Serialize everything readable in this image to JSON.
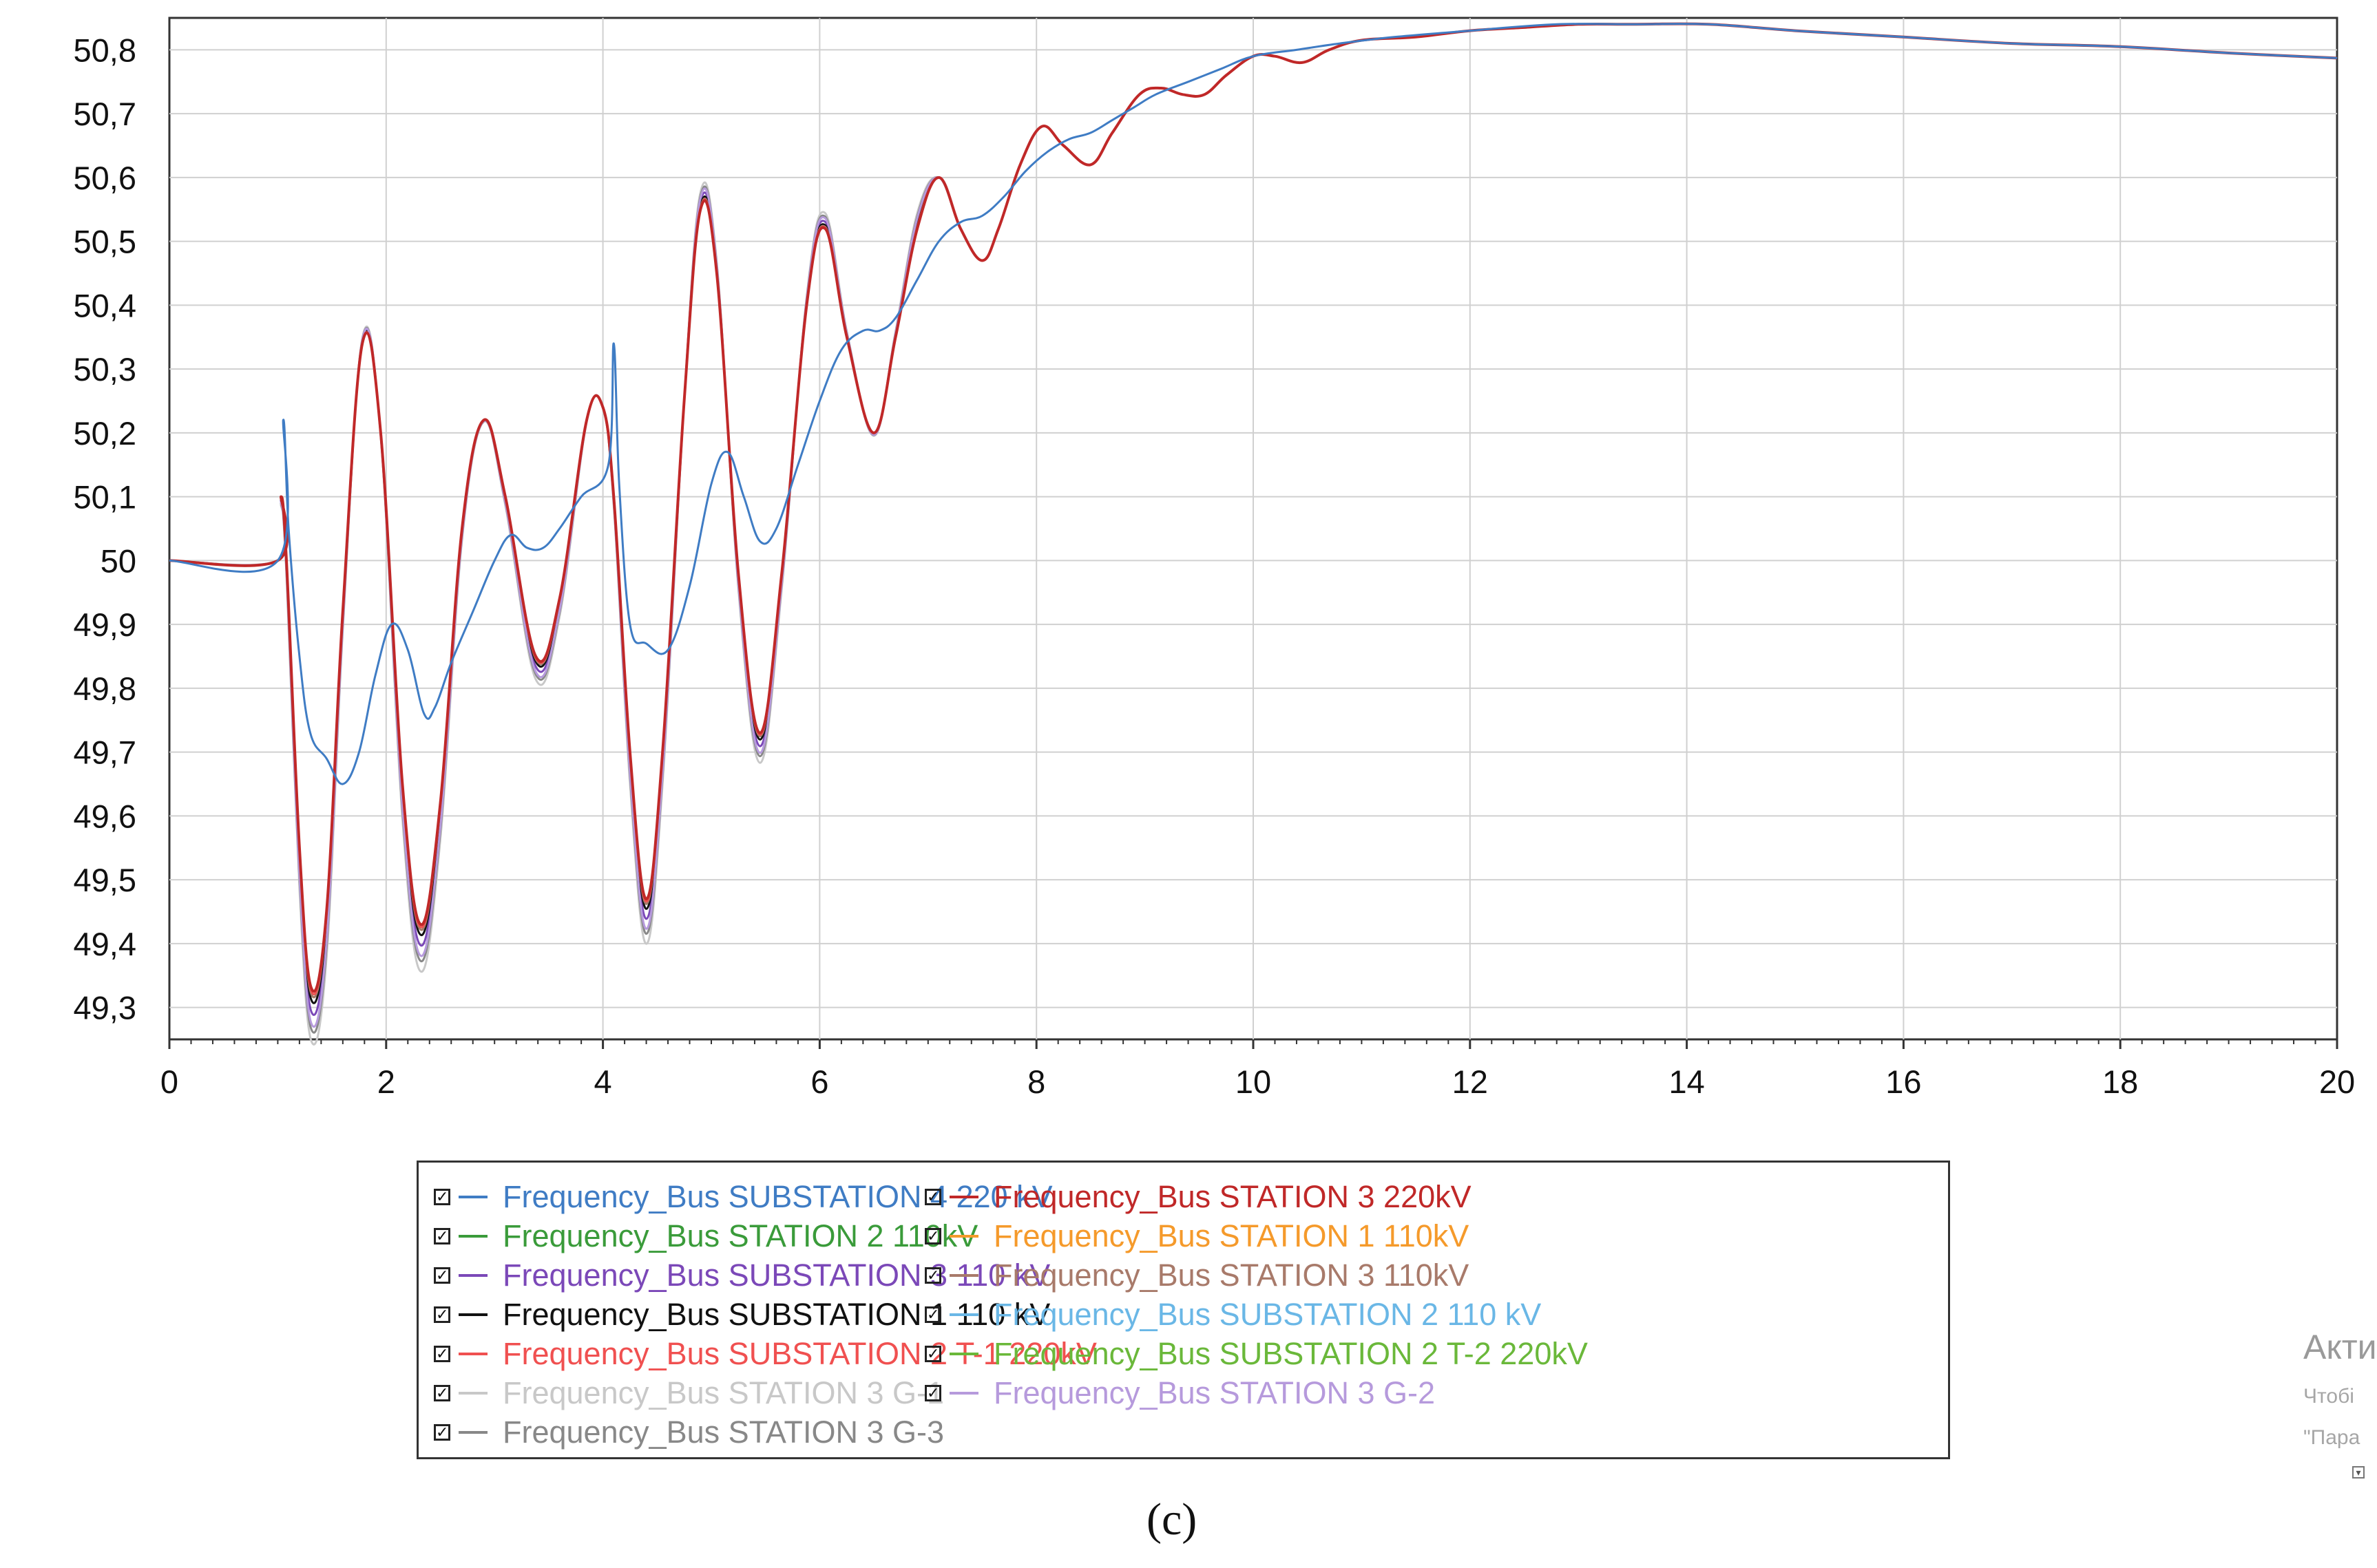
{
  "chart_data": {
    "type": "line",
    "title": "",
    "xlabel": "",
    "ylabel": "",
    "xlim": [
      0,
      20
    ],
    "ylim": [
      49.25,
      50.85
    ],
    "grid": true,
    "legend_position": "bottom",
    "x_ticks": [
      "0",
      "2",
      "4",
      "6",
      "8",
      "10",
      "12",
      "14",
      "16",
      "18",
      "20"
    ],
    "y_ticks": [
      "49,3",
      "49,4",
      "49,5",
      "49,6",
      "49,7",
      "49,8",
      "49,9",
      "50",
      "50,1",
      "50,2",
      "50,3",
      "50,4",
      "50,5",
      "50,6",
      "50,7",
      "50,8"
    ],
    "series": [
      {
        "name": "Frequency_Bus SUBSTATION 4 220 kV",
        "color": "#3f7cc4",
        "shape": "smooth",
        "points": [
          [
            0,
            50
          ],
          [
            1.0,
            50
          ],
          [
            1.05,
            50.22
          ],
          [
            1.1,
            50.05
          ],
          [
            1.2,
            49.85
          ],
          [
            1.3,
            49.73
          ],
          [
            1.45,
            49.69
          ],
          [
            1.6,
            49.65
          ],
          [
            1.75,
            49.7
          ],
          [
            1.9,
            49.82
          ],
          [
            2.05,
            49.9
          ],
          [
            2.2,
            49.86
          ],
          [
            2.35,
            49.76
          ],
          [
            2.45,
            49.77
          ],
          [
            2.6,
            49.84
          ],
          [
            2.8,
            49.92
          ],
          [
            3.0,
            50.0
          ],
          [
            3.15,
            50.04
          ],
          [
            3.3,
            50.02
          ],
          [
            3.45,
            50.02
          ],
          [
            3.6,
            50.05
          ],
          [
            3.8,
            50.1
          ],
          [
            4.05,
            50.15
          ],
          [
            4.1,
            50.34
          ],
          [
            4.15,
            50.12
          ],
          [
            4.25,
            49.9
          ],
          [
            4.4,
            49.87
          ],
          [
            4.6,
            49.86
          ],
          [
            4.8,
            49.96
          ],
          [
            5.0,
            50.12
          ],
          [
            5.15,
            50.17
          ],
          [
            5.3,
            50.1
          ],
          [
            5.45,
            50.03
          ],
          [
            5.6,
            50.05
          ],
          [
            5.8,
            50.15
          ],
          [
            6.0,
            50.25
          ],
          [
            6.2,
            50.33
          ],
          [
            6.4,
            50.36
          ],
          [
            6.55,
            50.36
          ],
          [
            6.7,
            50.38
          ],
          [
            6.9,
            50.44
          ],
          [
            7.1,
            50.5
          ],
          [
            7.3,
            50.53
          ],
          [
            7.5,
            50.54
          ],
          [
            7.7,
            50.57
          ],
          [
            7.9,
            50.61
          ],
          [
            8.1,
            50.64
          ],
          [
            8.3,
            50.66
          ],
          [
            8.5,
            50.67
          ],
          [
            8.7,
            50.69
          ],
          [
            8.9,
            50.71
          ],
          [
            9.1,
            50.73
          ],
          [
            9.4,
            50.75
          ],
          [
            9.7,
            50.77
          ],
          [
            10.0,
            50.79
          ],
          [
            10.4,
            50.8
          ],
          [
            10.8,
            50.81
          ],
          [
            11.3,
            50.82
          ],
          [
            12.0,
            50.83
          ],
          [
            12.8,
            50.84
          ],
          [
            13.5,
            50.84
          ],
          [
            14.2,
            50.84
          ],
          [
            15.0,
            50.83
          ],
          [
            16.0,
            50.82
          ],
          [
            17.0,
            50.81
          ],
          [
            18.0,
            50.805
          ],
          [
            19.0,
            50.795
          ],
          [
            20.0,
            50.787
          ]
        ]
      },
      {
        "name": "Frequency_Bus STATION 2 110kV",
        "color": "#3a9b3a",
        "shape": "osc"
      },
      {
        "name": "Frequency_Bus SUBSTATION 3 110 kV",
        "color": "#7b48b8",
        "shape": "osc"
      },
      {
        "name": "Frequency_Bus SUBSTATION 1 110 kV",
        "color": "#111111",
        "shape": "osc"
      },
      {
        "name": "Frequency_Bus SUBSTATION 2 T-1 220kV",
        "color": "#f05050",
        "shape": "osc"
      },
      {
        "name": "Frequency_Bus STATION 3 G-1",
        "color": "#c8c8c8",
        "shape": "osc"
      },
      {
        "name": "Frequency_Bus STATION 3 G-3",
        "color": "#888888",
        "shape": "osc"
      },
      {
        "name": "Frequency_Bus STATION 3 220kV",
        "color": "#c02828",
        "shape": "osc"
      },
      {
        "name": "Frequency_Bus STATION 1 110kV",
        "color": "#f59a2b",
        "shape": "osc"
      },
      {
        "name": "Frequency_Bus STATION 3 110kV",
        "color": "#a87a6a",
        "shape": "osc"
      },
      {
        "name": "Frequency_Bus SUBSTATION 2 110 kV",
        "color": "#6ab7e6",
        "shape": "osc"
      },
      {
        "name": "Frequency_Bus SUBSTATION 2  T-2 220kV",
        "color": "#6ab83a",
        "shape": "osc"
      },
      {
        "name": "Frequency_Bus STATION 3 G-2",
        "color": "#b69adc",
        "shape": "osc"
      }
    ],
    "oscillation_points": [
      [
        0,
        50
      ],
      [
        1.0,
        50
      ],
      [
        1.03,
        50.1
      ],
      [
        1.08,
        50.0
      ],
      [
        1.2,
        49.55
      ],
      [
        1.31,
        49.33
      ],
      [
        1.45,
        49.45
      ],
      [
        1.6,
        49.92
      ],
      [
        1.78,
        50.34
      ],
      [
        1.95,
        50.2
      ],
      [
        2.15,
        49.65
      ],
      [
        2.32,
        49.43
      ],
      [
        2.5,
        49.62
      ],
      [
        2.7,
        50.05
      ],
      [
        2.9,
        50.22
      ],
      [
        3.1,
        50.1
      ],
      [
        3.38,
        49.85
      ],
      [
        3.6,
        49.94
      ],
      [
        3.85,
        50.22
      ],
      [
        4.0,
        50.24
      ],
      [
        4.1,
        50.1
      ],
      [
        4.25,
        49.7
      ],
      [
        4.4,
        49.47
      ],
      [
        4.55,
        49.7
      ],
      [
        4.75,
        50.25
      ],
      [
        4.9,
        50.55
      ],
      [
        5.05,
        50.45
      ],
      [
        5.25,
        49.98
      ],
      [
        5.45,
        49.73
      ],
      [
        5.65,
        49.98
      ],
      [
        5.88,
        50.4
      ],
      [
        6.05,
        50.52
      ],
      [
        6.25,
        50.35
      ],
      [
        6.5,
        50.2
      ],
      [
        6.7,
        50.35
      ],
      [
        6.9,
        50.52
      ],
      [
        7.1,
        50.6
      ],
      [
        7.3,
        50.52
      ],
      [
        7.5,
        50.47
      ],
      [
        7.65,
        50.52
      ],
      [
        7.85,
        50.62
      ],
      [
        8.05,
        50.68
      ],
      [
        8.25,
        50.65
      ],
      [
        8.5,
        50.62
      ],
      [
        8.7,
        50.67
      ],
      [
        8.95,
        50.73
      ],
      [
        9.15,
        50.74
      ],
      [
        9.35,
        50.73
      ],
      [
        9.55,
        50.73
      ],
      [
        9.75,
        50.76
      ],
      [
        10.0,
        50.79
      ],
      [
        10.2,
        50.79
      ],
      [
        10.45,
        50.78
      ],
      [
        10.7,
        50.8
      ],
      [
        11.0,
        50.815
      ],
      [
        11.5,
        50.82
      ],
      [
        12.0,
        50.83
      ],
      [
        12.5,
        50.835
      ],
      [
        13.0,
        50.84
      ],
      [
        13.5,
        50.84
      ],
      [
        14.2,
        50.84
      ],
      [
        15.0,
        50.83
      ],
      [
        16.0,
        50.82
      ],
      [
        17.0,
        50.81
      ],
      [
        18.0,
        50.805
      ],
      [
        19.0,
        50.795
      ],
      [
        20.0,
        50.787
      ]
    ]
  },
  "legend": {
    "check_mark": "☑",
    "items": [
      {
        "label": "Frequency_Bus SUBSTATION 4 220 kV",
        "color": "#3f7cc4"
      },
      {
        "label": "Frequency_Bus STATION 2 110kV",
        "color": "#3a9b3a"
      },
      {
        "label": "Frequency_Bus SUBSTATION 3 110 kV",
        "color": "#7b48b8"
      },
      {
        "label": "Frequency_Bus SUBSTATION 1 110 kV",
        "color": "#111111"
      },
      {
        "label": "Frequency_Bus SUBSTATION 2 T-1 220kV",
        "color": "#f05050"
      },
      {
        "label": "Frequency_Bus STATION 3 G-1",
        "color": "#c8c8c8"
      },
      {
        "label": "Frequency_Bus STATION 3 G-3",
        "color": "#888888"
      },
      {
        "label": "Frequency_Bus STATION 3 220kV",
        "color": "#c02828"
      },
      {
        "label": "Frequency_Bus STATION 1 110kV",
        "color": "#f59a2b"
      },
      {
        "label": "Frequency_Bus STATION 3 110kV",
        "color": "#a87a6a"
      },
      {
        "label": "Frequency_Bus SUBSTATION 2 110 kV",
        "color": "#6ab7e6"
      },
      {
        "label": "Frequency_Bus SUBSTATION 2  T-2 220kV",
        "color": "#6ab83a"
      },
      {
        "label": "Frequency_Bus STATION 3 G-2",
        "color": "#b69adc"
      }
    ]
  },
  "caption": "(c)",
  "watermark": {
    "title": "Акти",
    "line1": "Чтобі",
    "line2": "\"Пара"
  }
}
